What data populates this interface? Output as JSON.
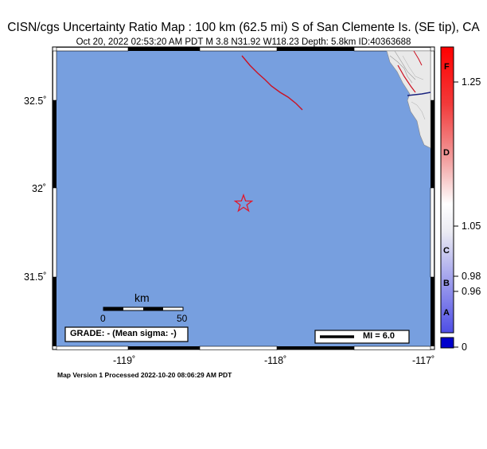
{
  "header": {
    "title": "CISN/cgs Uncertainty Ratio Map : 100 km (62.5 mi) S of San Clemente Is. (SE tip), CA",
    "subtitle": "Oct 20, 2022 02:53:20 AM PDT   M 3.8   N31.92 W118.23   Depth: 5.8km   ID:40363688"
  },
  "map": {
    "lat_ticks": [
      "32.5˚",
      "32˚",
      "31.5˚"
    ],
    "lon_ticks": [
      "-119˚",
      "-118˚",
      "-117˚"
    ],
    "epicenter_icon": "star-icon",
    "water_color": "#779fdf",
    "fault_color": "#cc1122",
    "scale_bar": {
      "unit": "km",
      "start": "0",
      "end": "50"
    },
    "grade_text": "GRADE: - (Mean sigma: -)",
    "mi_legend": "MI = 6.0"
  },
  "colorbar": {
    "letters": [
      "F",
      "D",
      "C",
      "B",
      "A"
    ],
    "values": [
      "1.25",
      "1.05",
      "0.98",
      "0.96",
      "0"
    ]
  },
  "footer": {
    "text": "Map Version 1 Processed 2022-10-20 08:06:29 AM PDT"
  }
}
